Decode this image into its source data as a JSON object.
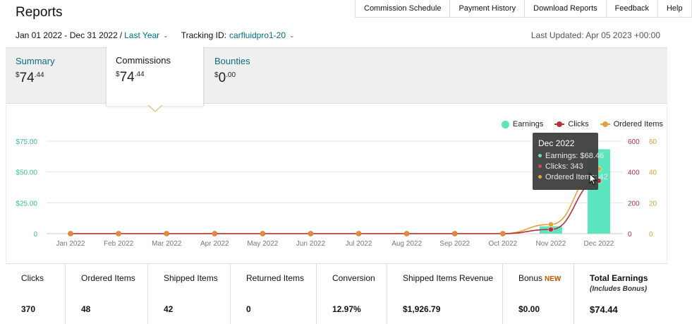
{
  "header": {
    "title": "Reports",
    "tabs": [
      "Commission Schedule",
      "Payment History",
      "Download Reports",
      "Feedback",
      "Help"
    ]
  },
  "filters": {
    "date_range": "Jan 01 2022 - Dec 31 2022",
    "separator": "/",
    "period": "Last Year",
    "tracking_label": "Tracking ID:",
    "tracking_id": "carfluidpro1-20",
    "last_updated": "Last Updated: Apr 05 2023 +00:00"
  },
  "summary_tabs": [
    {
      "label": "Summary",
      "currency": "$",
      "whole": "74",
      "cents": ".44"
    },
    {
      "label": "Commissions",
      "currency": "$",
      "whole": "74",
      "cents": ".44",
      "active": true
    },
    {
      "label": "Bounties",
      "currency": "$",
      "whole": "0",
      "cents": ".00"
    }
  ],
  "legend": [
    {
      "label": "Earnings",
      "color": "#5ce6c0"
    },
    {
      "label": "Clicks",
      "color": "#b3323c"
    },
    {
      "label": "Ordered Items",
      "color": "#e3a33c"
    }
  ],
  "tooltip": {
    "title": "Dec 2022",
    "rows": [
      "Earnings: $68.46",
      "Clicks: 343",
      "Ordered Items: 42"
    ]
  },
  "chart_data": {
    "type": "bar",
    "categories": [
      "Jan 2022",
      "Feb 2022",
      "Mar 2022",
      "Apr 2022",
      "May 2022",
      "Jun 2022",
      "Jul 2022",
      "Aug 2022",
      "Sep 2022",
      "Oct 2022",
      "Nov 2022",
      "Dec 2022"
    ],
    "series": [
      {
        "name": "Earnings",
        "type": "bar",
        "axis": "left",
        "color": "#5ce6c0",
        "values": [
          0,
          0,
          0,
          0,
          0,
          0,
          0,
          0,
          0,
          0,
          5.98,
          68.46
        ]
      },
      {
        "name": "Clicks",
        "type": "line",
        "axis": "right1",
        "color": "#b3323c",
        "values": [
          0,
          0,
          0,
          0,
          0,
          0,
          0,
          0,
          0,
          0,
          27,
          343
        ]
      },
      {
        "name": "Ordered Items",
        "type": "line",
        "axis": "right2",
        "color": "#e3a33c",
        "values": [
          0,
          0,
          0,
          0,
          0,
          0,
          0,
          0,
          0,
          0,
          6,
          42
        ]
      }
    ],
    "y_left": {
      "ticks": [
        "$75.00",
        "$50.00",
        "$25.00",
        "0"
      ],
      "ylim": [
        0,
        75
      ],
      "color": "#3bbf92"
    },
    "y_right1": {
      "ticks": [
        "600",
        "400",
        "200",
        "0"
      ],
      "ylim": [
        0,
        600
      ],
      "color": "#b3323c"
    },
    "y_right2": {
      "ticks": [
        "60",
        "40",
        "20",
        "0"
      ],
      "ylim": [
        0,
        60
      ],
      "color": "#d9a13c"
    },
    "grid": true,
    "legend_position": "top-right"
  },
  "stats": [
    {
      "label": "Clicks",
      "value": "370"
    },
    {
      "label": "Ordered Items",
      "value": "48"
    },
    {
      "label": "Shipped Items",
      "value": "42"
    },
    {
      "label": "Returned Items",
      "value": "0"
    },
    {
      "label": "Conversion",
      "value": "12.97%"
    },
    {
      "label": "Shipped Items Revenue",
      "value": "$1,926.79"
    },
    {
      "label": "Bonus",
      "badge": "NEW",
      "value": "$0.00"
    },
    {
      "label": "Total Earnings",
      "sublabel": "(Includes Bonus)",
      "value": "$74.44"
    }
  ]
}
